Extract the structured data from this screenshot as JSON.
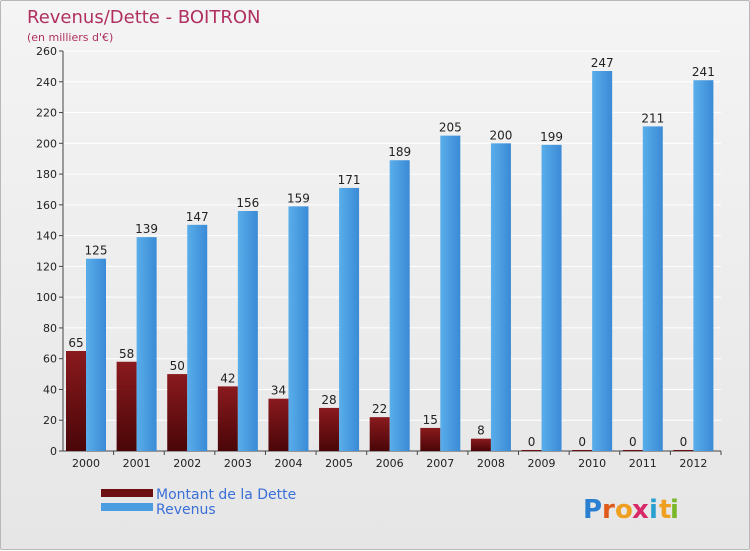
{
  "chart_data": {
    "type": "bar",
    "title": "Revenus/Dette - BOITRON",
    "subtitle": "(en milliers d'€)",
    "categories": [
      "2000",
      "2001",
      "2002",
      "2003",
      "2004",
      "2005",
      "2006",
      "2007",
      "2008",
      "2009",
      "2010",
      "2011",
      "2012"
    ],
    "series": [
      {
        "name": "Montant de la Dette",
        "values": [
          65,
          58,
          50,
          42,
          34,
          28,
          22,
          15,
          8,
          0,
          0,
          0,
          0
        ],
        "color": "#6e0f12"
      },
      {
        "name": "Revenus",
        "values": [
          125,
          139,
          147,
          156,
          159,
          171,
          189,
          205,
          200,
          199,
          247,
          211,
          241
        ],
        "color": "#4a9de0"
      }
    ],
    "ylim": [
      0,
      260
    ],
    "yticks": [
      0,
      20,
      40,
      60,
      80,
      100,
      120,
      140,
      160,
      180,
      200,
      220,
      240,
      260
    ],
    "grid": true,
    "legend": "bottom-left"
  },
  "brand": {
    "logo_letters": [
      "P",
      "r",
      "o",
      "x",
      "i",
      "t",
      "i"
    ],
    "logo_colors": [
      "#2a7fd0",
      "#e05a1a",
      "#f0a020",
      "#d82a6a",
      "#2aa0d0",
      "#f0a020",
      "#7ab82a"
    ]
  }
}
